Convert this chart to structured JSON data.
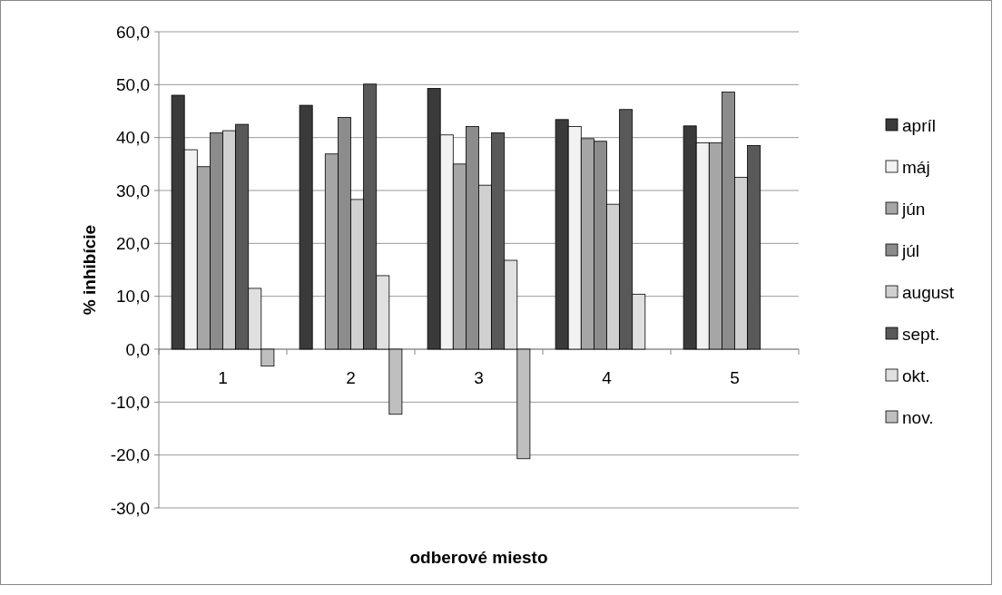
{
  "chart_data": {
    "type": "bar",
    "xlabel": "odberové miesto",
    "ylabel": "% inhibície",
    "categories": [
      "1",
      "2",
      "3",
      "4",
      "5"
    ],
    "series": [
      {
        "name": "apríl",
        "color": "#3a3a3a",
        "values": [
          48.0,
          46.1,
          49.3,
          43.4,
          42.2
        ]
      },
      {
        "name": "máj",
        "color": "#f2f2f2",
        "values": [
          37.7,
          null,
          40.5,
          42.1,
          39.0
        ]
      },
      {
        "name": "jún",
        "color": "#a6a6a6",
        "values": [
          34.5,
          36.9,
          35.0,
          39.8,
          39.0
        ]
      },
      {
        "name": "júl",
        "color": "#8c8c8c",
        "values": [
          40.9,
          43.8,
          42.1,
          39.3,
          48.6
        ]
      },
      {
        "name": "august",
        "color": "#d0d0d0",
        "values": [
          41.3,
          28.3,
          31.0,
          27.4,
          32.5
        ]
      },
      {
        "name": "sept.",
        "color": "#595959",
        "values": [
          42.5,
          50.1,
          40.9,
          45.3,
          38.5
        ]
      },
      {
        "name": "okt.",
        "color": "#e0e0e0",
        "values": [
          11.5,
          13.9,
          16.8,
          10.4,
          null
        ]
      },
      {
        "name": "nov.",
        "color": "#bfbfbf",
        "values": [
          -3.2,
          -12.3,
          -20.7,
          null,
          null
        ]
      }
    ],
    "ylim": [
      -30,
      60
    ],
    "yticks": [
      {
        "value": -30,
        "label": "-30,0"
      },
      {
        "value": -20,
        "label": "-20,0"
      },
      {
        "value": -10,
        "label": "-10,0"
      },
      {
        "value": 0,
        "label": "0,0"
      },
      {
        "value": 10,
        "label": "10,0"
      },
      {
        "value": 20,
        "label": "20,0"
      },
      {
        "value": 30,
        "label": "30,0"
      },
      {
        "value": 40,
        "label": "40,0"
      },
      {
        "value": 50,
        "label": "50,0"
      },
      {
        "value": 60,
        "label": "60,0"
      }
    ],
    "grid": "y",
    "legend": "right"
  }
}
